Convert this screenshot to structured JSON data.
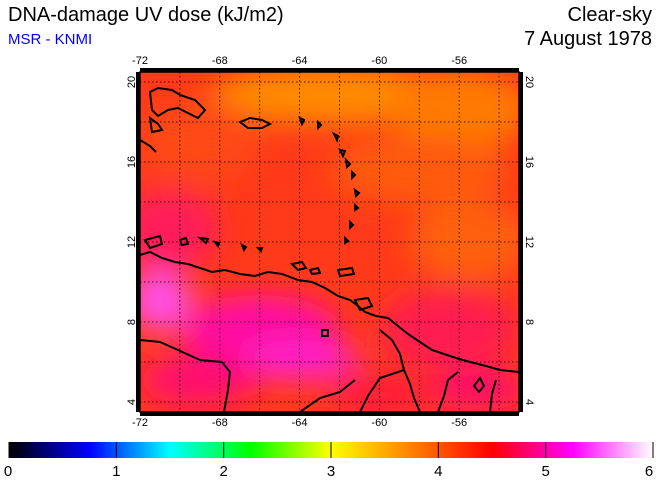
{
  "header": {
    "title": "DNA-damage UV dose (kJ/m2)",
    "source": "MSR - KNMI",
    "condition": "Clear-sky",
    "date": "7 August 1978"
  },
  "map": {
    "lon_range": [
      -72,
      -53
    ],
    "lat_range": [
      3.5,
      20.5
    ],
    "lon_ticks": [
      -72,
      -68,
      -64,
      -60,
      -56
    ],
    "lat_ticks": [
      4,
      8,
      12,
      16,
      20
    ],
    "grid": "dotted, every 2 degrees"
  },
  "colorbar": {
    "ticks": [
      "0",
      "1",
      "2",
      "3",
      "4",
      "5",
      "6"
    ],
    "range": [
      0,
      6
    ],
    "colors": [
      "#000000",
      "#0000ff",
      "#00ffff",
      "#00ff00",
      "#ffff00",
      "#ff8000",
      "#ff0000",
      "#ff00ff",
      "#ffffff"
    ]
  }
}
